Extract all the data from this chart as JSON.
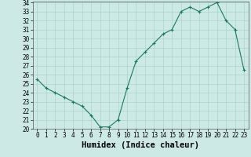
{
  "x": [
    0,
    1,
    2,
    3,
    4,
    5,
    6,
    7,
    8,
    9,
    10,
    11,
    12,
    13,
    14,
    15,
    16,
    17,
    18,
    19,
    20,
    21,
    22,
    23
  ],
  "y": [
    25.5,
    24.5,
    24.0,
    23.5,
    23.0,
    22.5,
    21.5,
    20.2,
    20.2,
    21.0,
    24.5,
    27.5,
    28.5,
    29.5,
    30.5,
    31.0,
    33.0,
    33.5,
    33.0,
    33.5,
    34.0,
    32.0,
    31.0,
    26.5
  ],
  "xlabel": "Humidex (Indice chaleur)",
  "ylim": [
    20,
    34
  ],
  "xlim": [
    -0.5,
    23.5
  ],
  "yticks": [
    20,
    21,
    22,
    23,
    24,
    25,
    26,
    27,
    28,
    29,
    30,
    31,
    32,
    33,
    34
  ],
  "xticks": [
    0,
    1,
    2,
    3,
    4,
    5,
    6,
    7,
    8,
    9,
    10,
    11,
    12,
    13,
    14,
    15,
    16,
    17,
    18,
    19,
    20,
    21,
    22,
    23
  ],
  "line_color": "#1a7a5e",
  "marker": "+",
  "bg_color": "#cce9e5",
  "grid_color": "#aad4ce",
  "tick_label_fontsize": 5.5,
  "xlabel_fontsize": 7.5
}
